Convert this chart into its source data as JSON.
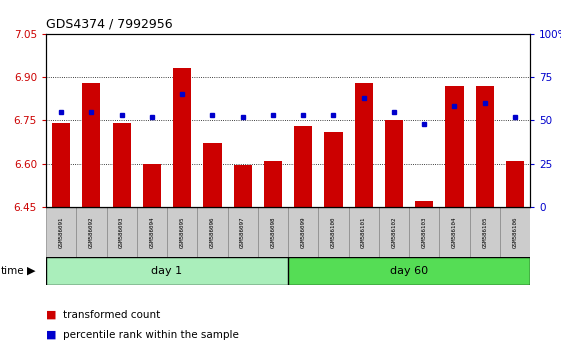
{
  "title": "GDS4374 / 7992956",
  "samples": [
    "GSM586091",
    "GSM586092",
    "GSM586093",
    "GSM586094",
    "GSM586095",
    "GSM586096",
    "GSM586097",
    "GSM586098",
    "GSM586099",
    "GSM586100",
    "GSM586101",
    "GSM586102",
    "GSM586103",
    "GSM586104",
    "GSM586105",
    "GSM586106"
  ],
  "bar_values": [
    6.74,
    6.88,
    6.74,
    6.6,
    6.93,
    6.67,
    6.595,
    6.61,
    6.73,
    6.71,
    6.88,
    6.75,
    6.47,
    6.87,
    6.87,
    6.61
  ],
  "percentile_values": [
    55,
    55,
    53,
    52,
    65,
    53,
    52,
    53,
    53,
    53,
    63,
    55,
    48,
    58,
    60,
    52
  ],
  "ylim_left": [
    6.45,
    7.05
  ],
  "ylim_right": [
    0,
    100
  ],
  "yticks_left": [
    6.45,
    6.6,
    6.75,
    6.9,
    7.05
  ],
  "yticks_right": [
    0,
    25,
    50,
    75,
    100
  ],
  "bar_color": "#cc0000",
  "dot_color": "#0000cc",
  "bar_baseline": 6.45,
  "day1_color": "#aaeebb",
  "day60_color": "#55dd55",
  "day1_samples": 8,
  "day60_samples": 8,
  "grid_color": "#000000",
  "background_color": "#ffffff",
  "plot_bg_color": "#ffffff",
  "tick_label_color_left": "#cc0000",
  "tick_label_color_right": "#0000cc",
  "legend_red_label": "transformed count",
  "legend_blue_label": "percentile rank within the sample",
  "cell_bg": "#cccccc",
  "cell_edge": "#888888"
}
